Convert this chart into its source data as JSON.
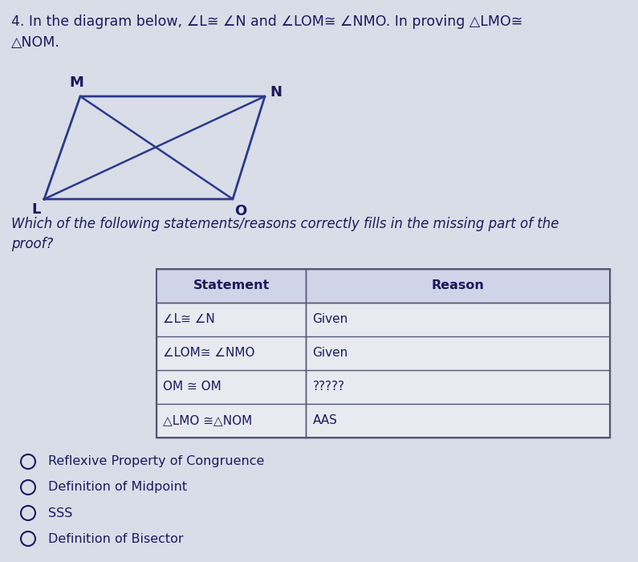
{
  "title_line1": "4. In the diagram below, ∠L≅ ∠N and ∠LOM≅ ∠NMO. In proving △LMO≅",
  "title_line2": "△NOM.",
  "question_text": "Which of the following statements/reasons correctly fills in the missing part of the\nproof?",
  "table_headers": [
    "Statement",
    "Reason"
  ],
  "table_rows": [
    [
      "∠L≅ ∠N",
      "Given"
    ],
    [
      "∠LOM≅ ∠NMO",
      "Given"
    ],
    [
      "OM ≅ OM",
      "?????"
    ],
    [
      "△LMO ≅△NOM",
      "AAS"
    ]
  ],
  "options": [
    "Reflexive Property of Congruence",
    "Definition of Midpoint",
    "SSS",
    "Definition of Bisector"
  ],
  "bg_color": "#d9dde8",
  "text_color": "#1a1a5e",
  "diagram_color": "#2a3a8c",
  "table_bg": "#e8eaf0",
  "header_bg": "#d0d4e8"
}
